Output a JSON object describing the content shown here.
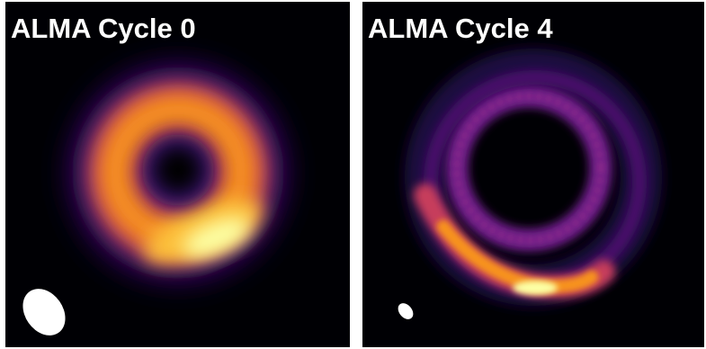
{
  "panels": [
    {
      "title": "ALMA Cycle 0"
    },
    {
      "title": "ALMA Cycle 4"
    }
  ],
  "colors": {
    "background": "#000004",
    "colormap": "inferno",
    "beam": "#ffffff"
  }
}
